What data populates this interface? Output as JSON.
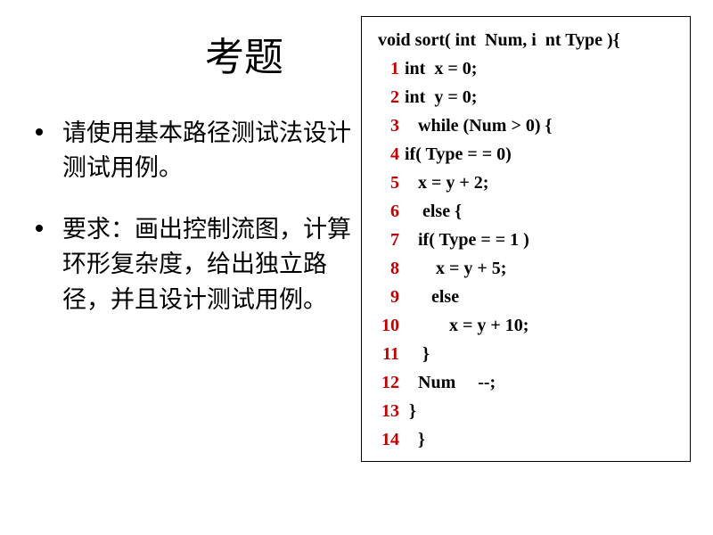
{
  "title": "考题",
  "bullets": [
    "请使用基本路径测试法设计测试用例。",
    "要求：画出控制流图，计算环形复杂度，给出独立路径，并且设计测试用例。"
  ],
  "code": {
    "signature": "void sort( int  Num, i  nt Type ){",
    "lines": [
      {
        "n": "1",
        "t": "int  x = 0;"
      },
      {
        "n": "2",
        "t": "int  y = 0;"
      },
      {
        "n": "3",
        "t": "   while (Num > 0) {"
      },
      {
        "n": "4",
        "t": "if( Type = = 0)"
      },
      {
        "n": "5",
        "t": "   x = y + 2;"
      },
      {
        "n": "6",
        "t": "    else {"
      },
      {
        "n": "7",
        "t": "   if( Type = = 1 )"
      },
      {
        "n": "8",
        "t": "       x = y + 5;"
      },
      {
        "n": "9",
        "t": "      else"
      },
      {
        "n": "10",
        "t": "          x = y + 10;"
      },
      {
        "n": "11",
        "t": "    }"
      },
      {
        "n": "12",
        "t": "   Num     --;"
      },
      {
        "n": "13",
        "t": " }"
      },
      {
        "n": "14",
        "t": "   }"
      }
    ]
  },
  "colors": {
    "line_number": "#c00000",
    "text": "#000000",
    "background": "#ffffff",
    "border": "#000000"
  },
  "typography": {
    "title_fontsize": 44,
    "body_fontsize": 27,
    "code_fontsize": 20,
    "title_font": "SimSun",
    "body_font": "SimSun",
    "code_font": "Times New Roman",
    "code_weight": "bold"
  }
}
